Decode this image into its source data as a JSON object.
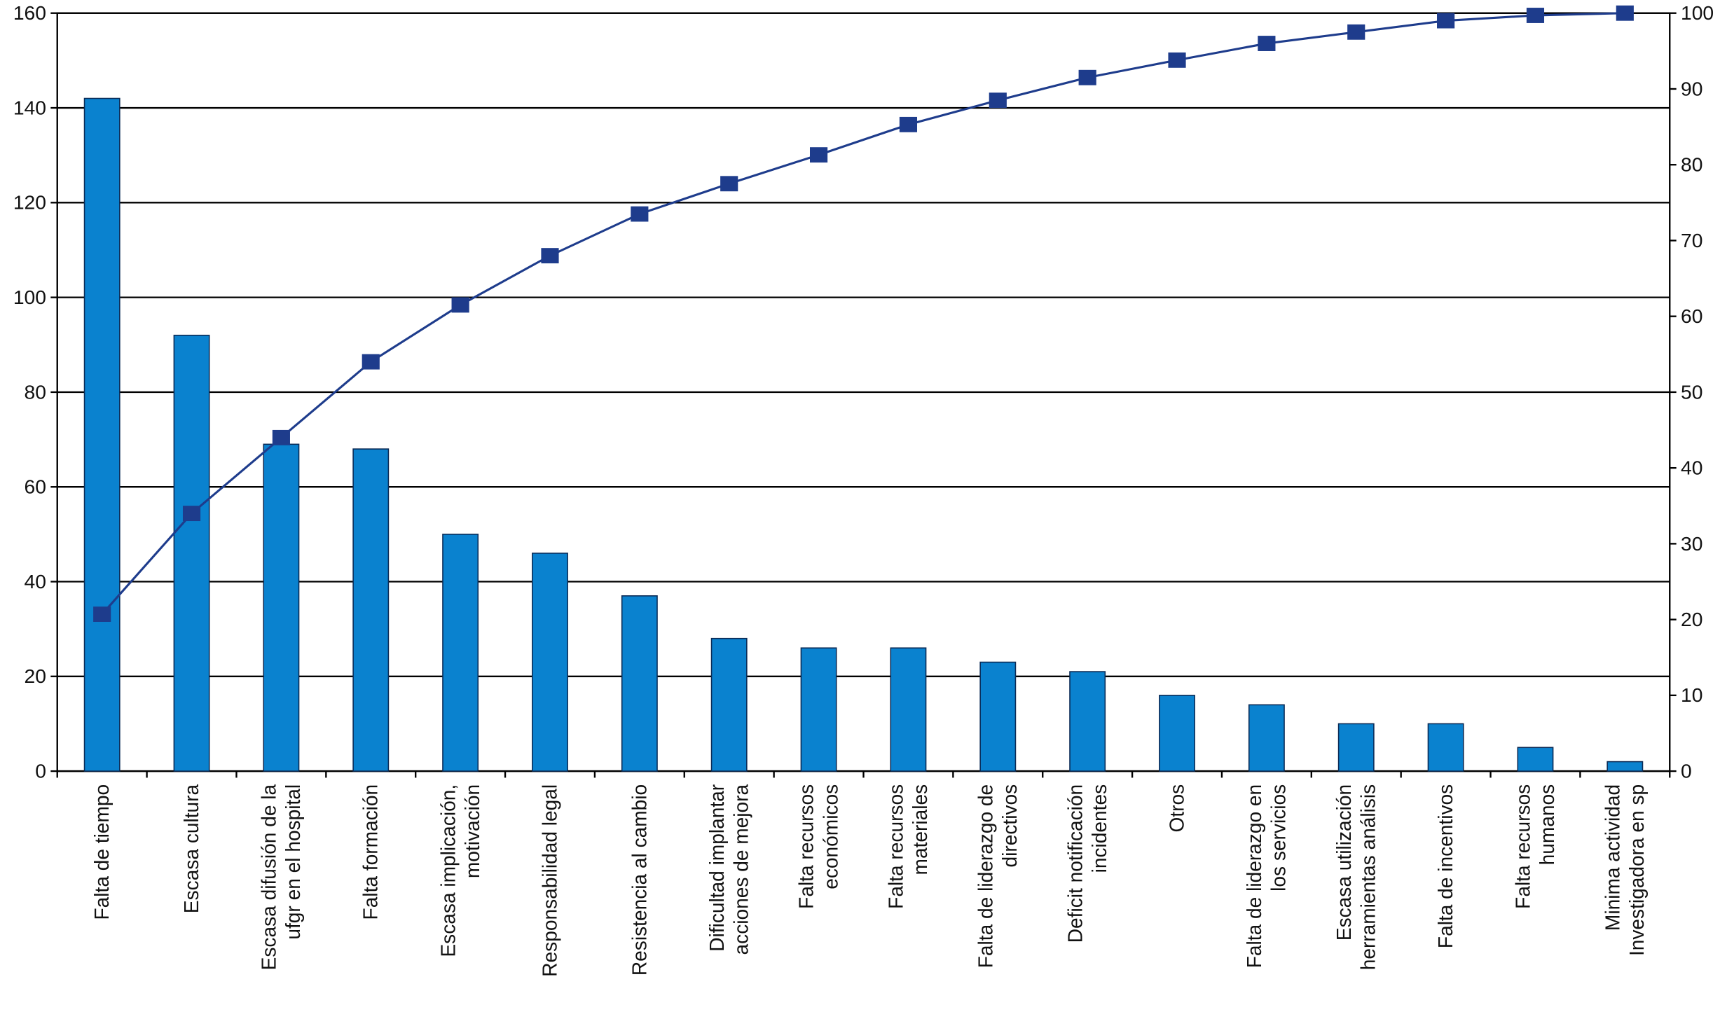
{
  "chart_data": {
    "type": "pareto",
    "categories": [
      [
        "Falta de tiempo"
      ],
      [
        "Escasa cultura"
      ],
      [
        "Escasa difusión de la",
        "ufgr en el hospital"
      ],
      [
        "Falta formación"
      ],
      [
        "Escasa implicación,",
        "motivación"
      ],
      [
        "Responsabilidad legal"
      ],
      [
        "Resistencia al cambio"
      ],
      [
        "Dificultad implantar",
        "acciones de mejora"
      ],
      [
        "Falta recursos",
        "económicos"
      ],
      [
        "Falta recursos",
        "materiales"
      ],
      [
        "Falta de liderazgo de",
        "directivos"
      ],
      [
        "Deficit notificación",
        "incidentes"
      ],
      [
        "Otros"
      ],
      [
        "Falta de liderazgo en",
        "los servicios"
      ],
      [
        "Escasa utilización",
        "herramientas análisis"
      ],
      [
        "Falta de incentivos"
      ],
      [
        "Falta recursos",
        "humanos"
      ],
      [
        "Minima actividad",
        "Investigadora en sp"
      ]
    ],
    "series": [
      {
        "color": "#0a82cf",
        "values": [
          142,
          92,
          69,
          68,
          50,
          46,
          37,
          28,
          26,
          26,
          23,
          21,
          16,
          14,
          10,
          10,
          5,
          2
        ]
      },
      {
        "color": "#1e3c8c",
        "axis": "y2",
        "values": [
          20.7,
          34,
          44,
          54,
          61.5,
          68,
          73.5,
          77.5,
          81.3,
          85.3,
          88.5,
          91.5,
          93.8,
          96,
          97.5,
          99,
          99.7,
          100
        ]
      }
    ],
    "ylim": [
      0,
      160
    ],
    "yticks": [
      0,
      20,
      40,
      60,
      80,
      100,
      120,
      140,
      160
    ],
    "y2lim": [
      0,
      100
    ],
    "y2ticks": [
      0,
      10,
      20,
      30,
      40,
      50,
      60,
      70,
      80,
      90,
      100
    ],
    "grid": true
  }
}
